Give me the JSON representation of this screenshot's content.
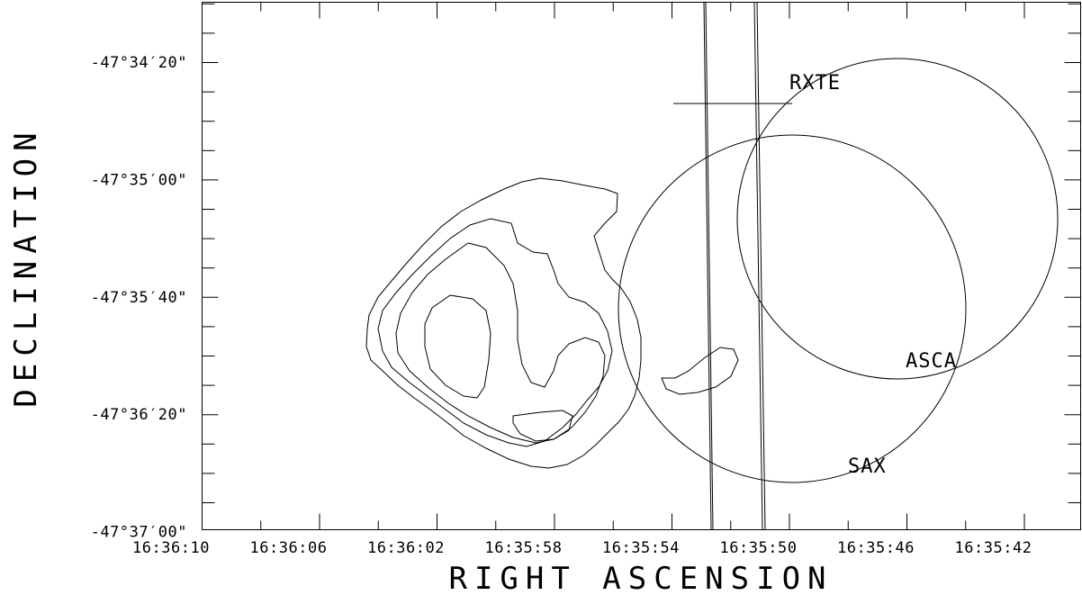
{
  "chart_data": {
    "type": "contour",
    "xlabel": "RIGHT ASCENSION",
    "ylabel": "DECLINATION",
    "x_tick_labels": [
      "16:36:10",
      "16:36:06",
      "16:36:02",
      "16:35:58",
      "16:35:54",
      "16:35:50",
      "16:35:46",
      "16:35:42"
    ],
    "y_tick_labels": [
      "-47°34′20\"",
      "-47°35′00\"",
      "-47°35′40\"",
      "-47°36′20\"",
      "-47°37′00\""
    ],
    "x_range_seconds_of_RA": [
      16.0,
      16.35,
      10.0
    ],
    "grid": false,
    "annotations": [
      {
        "label": "RXTE"
      },
      {
        "label": "ASCA"
      },
      {
        "label": "SAX"
      }
    ],
    "error_circles": [
      {
        "name": "SAX",
        "center_ra": "16:35:50.2",
        "center_dec": "-47°35′44\"",
        "radius_arcsec": 36
      },
      {
        "name": "ASCA",
        "center_ra": "16:35:46.4",
        "center_dec": "-47°35′14\"",
        "radius_arcsec": 36
      }
    ],
    "rxte_lines": [
      {
        "ra_top": "16:35:53.0",
        "ra_bottom": "16:35:52.8"
      },
      {
        "ra_top": "16:35:51.1",
        "ra_bottom": "16:35:50.9"
      }
    ],
    "contour_levels": 4
  }
}
